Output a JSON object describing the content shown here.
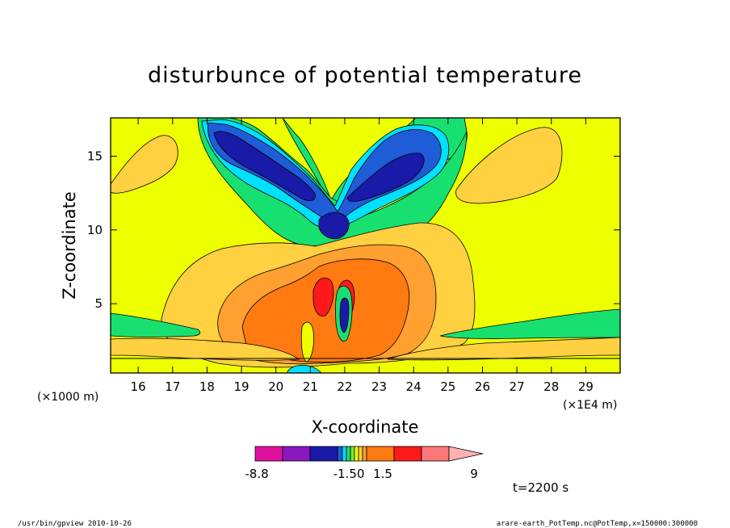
{
  "chart_data": {
    "type": "heatmap",
    "title": "disturbunce of potential temperature",
    "xlabel": "X-coordinate",
    "ylabel": "Z-coordinate",
    "x_unit_left": "(×1000 m)",
    "x_unit_right": "(×1E4 m)",
    "xlim": [
      15.2,
      30.0
    ],
    "ylim": [
      0.3,
      17.6
    ],
    "x_ticks": [
      16,
      17,
      18,
      19,
      20,
      21,
      22,
      23,
      24,
      25,
      26,
      27,
      28,
      29
    ],
    "y_ticks": [
      5,
      10,
      15
    ],
    "time_label": "t=2200 s",
    "colorbar": {
      "labels": [
        "-8.8",
        "-1.50",
        "1.5",
        "9"
      ],
      "colors": [
        "#e0109e",
        "#8b17c0",
        "#1a1aa8",
        "#1e5cd8",
        "#00e0ff",
        "#18e070",
        "#7be838",
        "#eeff00",
        "#ffd040",
        "#ffa030",
        "#ff7a10",
        "#ff1a1a",
        "#ff7878",
        "#ffb0b0"
      ]
    },
    "grid": false
  },
  "footer": {
    "left": "/usr/bin/gpview   2010-10-26",
    "right": "arare-earth_PotTemp.nc@PotTemp,x=150000:300000"
  }
}
